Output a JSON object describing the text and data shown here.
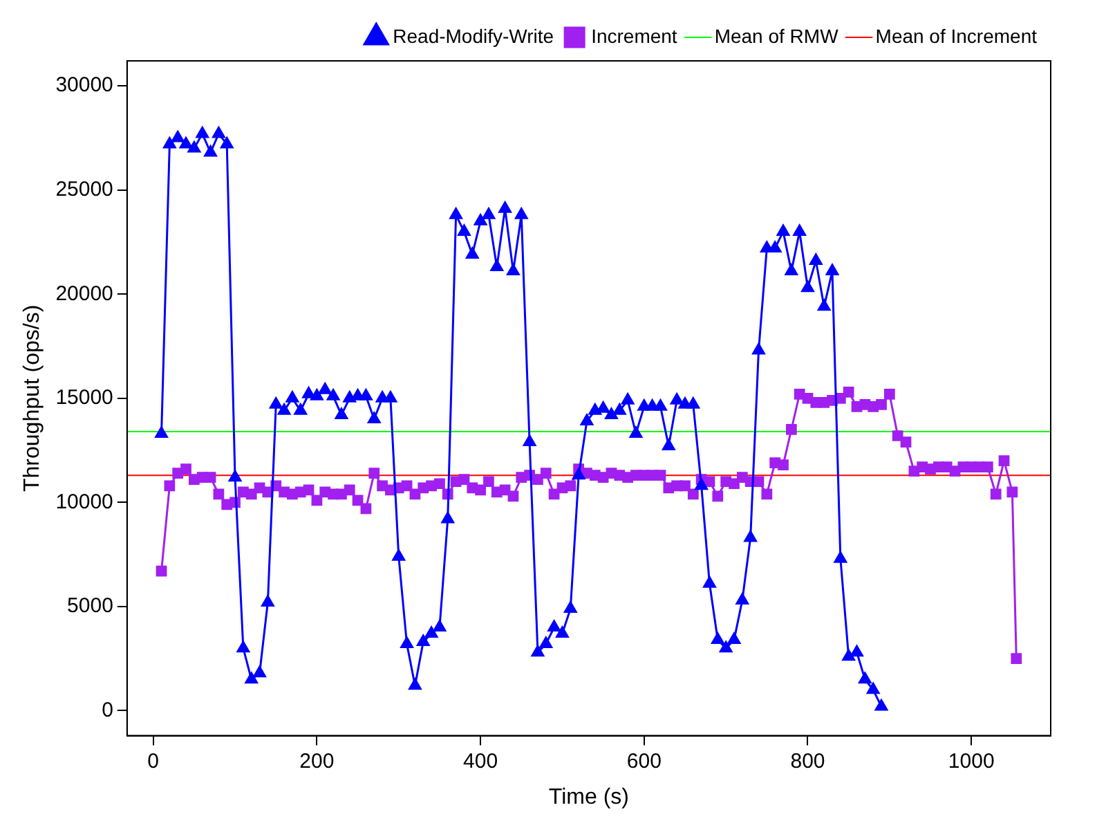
{
  "chart_data": {
    "type": "line",
    "xlabel": "Time (s)",
    "ylabel": "Throughput (ops/s)",
    "xlim": [
      -32,
      1097
    ],
    "xticks": [
      0,
      200,
      400,
      600,
      800,
      1000
    ],
    "ylim": [
      -1200,
      31200
    ],
    "yticks": [
      0,
      5000,
      10000,
      15000,
      20000,
      25000,
      30000
    ],
    "grid": false,
    "legend": "top right",
    "line_style": "solid",
    "series": [
      {
        "name": "Read-Modify-Write",
        "color": "#0000ff",
        "marker": "triangle",
        "x": [
          10,
          20,
          30,
          40,
          50,
          60,
          70,
          80,
          90,
          100,
          110,
          120,
          130,
          140,
          150,
          160,
          170,
          180,
          190,
          200,
          210,
          220,
          230,
          240,
          250,
          260,
          270,
          280,
          290,
          300,
          310,
          320,
          330,
          340,
          350,
          360,
          370,
          380,
          390,
          400,
          410,
          420,
          430,
          440,
          450,
          460,
          470,
          480,
          490,
          500,
          510,
          520,
          530,
          540,
          550,
          560,
          570,
          580,
          590,
          600,
          610,
          620,
          630,
          640,
          650,
          660,
          670,
          680,
          690,
          700,
          710,
          720,
          730,
          740,
          750,
          760,
          770,
          780,
          790,
          800,
          810,
          820,
          830,
          840,
          850,
          860,
          870,
          880,
          890
        ],
        "values": [
          13300,
          27200,
          27500,
          27200,
          27000,
          27700,
          26800,
          27700,
          27200,
          11200,
          3000,
          1500,
          1800,
          5200,
          14700,
          14400,
          15000,
          14400,
          15200,
          15100,
          15400,
          15100,
          14200,
          15000,
          15100,
          15100,
          14000,
          15000,
          15000,
          7400,
          3200,
          1200,
          3300,
          3700,
          4000,
          9200,
          23800,
          23000,
          21900,
          23500,
          23800,
          21300,
          24100,
          21100,
          23800,
          12900,
          2800,
          3200,
          4000,
          3700,
          4900,
          11300,
          13900,
          14400,
          14500,
          14200,
          14400,
          14900,
          13300,
          14600,
          14600,
          14600,
          12700,
          14900,
          14700,
          14700,
          10800,
          6100,
          3400,
          3000,
          3400,
          5300,
          8300,
          17300,
          22200,
          22200,
          23000,
          21100,
          23000,
          20300,
          21600,
          19400,
          21100,
          7300,
          2600,
          2800,
          1500,
          1000,
          200
        ]
      },
      {
        "name": "Increment",
        "color": "#a020f0",
        "marker": "square",
        "x": [
          10,
          20,
          30,
          40,
          50,
          60,
          70,
          80,
          90,
          100,
          110,
          120,
          130,
          140,
          150,
          160,
          170,
          180,
          190,
          200,
          210,
          220,
          230,
          240,
          250,
          260,
          270,
          280,
          290,
          300,
          310,
          320,
          330,
          340,
          350,
          360,
          370,
          380,
          390,
          400,
          410,
          420,
          430,
          440,
          450,
          460,
          470,
          480,
          490,
          500,
          510,
          520,
          530,
          540,
          550,
          560,
          570,
          580,
          590,
          600,
          610,
          620,
          630,
          640,
          650,
          660,
          670,
          680,
          690,
          700,
          710,
          720,
          730,
          740,
          750,
          760,
          770,
          780,
          790,
          800,
          810,
          820,
          830,
          840,
          850,
          860,
          870,
          880,
          890,
          900,
          910,
          920,
          930,
          940,
          950,
          960,
          970,
          980,
          990,
          1000,
          1010,
          1020,
          1030,
          1040,
          1050,
          1055
        ],
        "values": [
          6700,
          10800,
          11400,
          11600,
          11100,
          11200,
          11200,
          10400,
          9900,
          10000,
          10500,
          10400,
          10700,
          10500,
          10800,
          10500,
          10400,
          10500,
          10600,
          10100,
          10500,
          10400,
          10400,
          10600,
          10100,
          9700,
          11400,
          10800,
          10600,
          10700,
          10800,
          10400,
          10700,
          10800,
          10900,
          10400,
          11000,
          11100,
          10700,
          10600,
          11000,
          10500,
          10600,
          10300,
          11200,
          11300,
          11100,
          11400,
          10400,
          10700,
          10800,
          11600,
          11400,
          11300,
          11200,
          11400,
          11300,
          11200,
          11300,
          11300,
          11300,
          11300,
          10700,
          10800,
          10800,
          10400,
          11100,
          11000,
          10300,
          11000,
          10900,
          11200,
          11000,
          11000,
          10400,
          11900,
          11800,
          13500,
          15200,
          15000,
          14800,
          14800,
          14900,
          15000,
          15300,
          14600,
          14700,
          14600,
          14700,
          15200,
          13200,
          12900,
          11500,
          11700,
          11600,
          11700,
          11700,
          11500,
          11700,
          11700,
          11700,
          11700,
          10400,
          12000,
          10500,
          2500
        ]
      }
    ],
    "ref_lines": [
      {
        "axis": "y",
        "value": 13400,
        "label": "Mean of RMW",
        "color": "#00ff00"
      },
      {
        "axis": "y",
        "value": 11300,
        "label": "Mean of Increment",
        "color": "#ff0000"
      }
    ]
  }
}
